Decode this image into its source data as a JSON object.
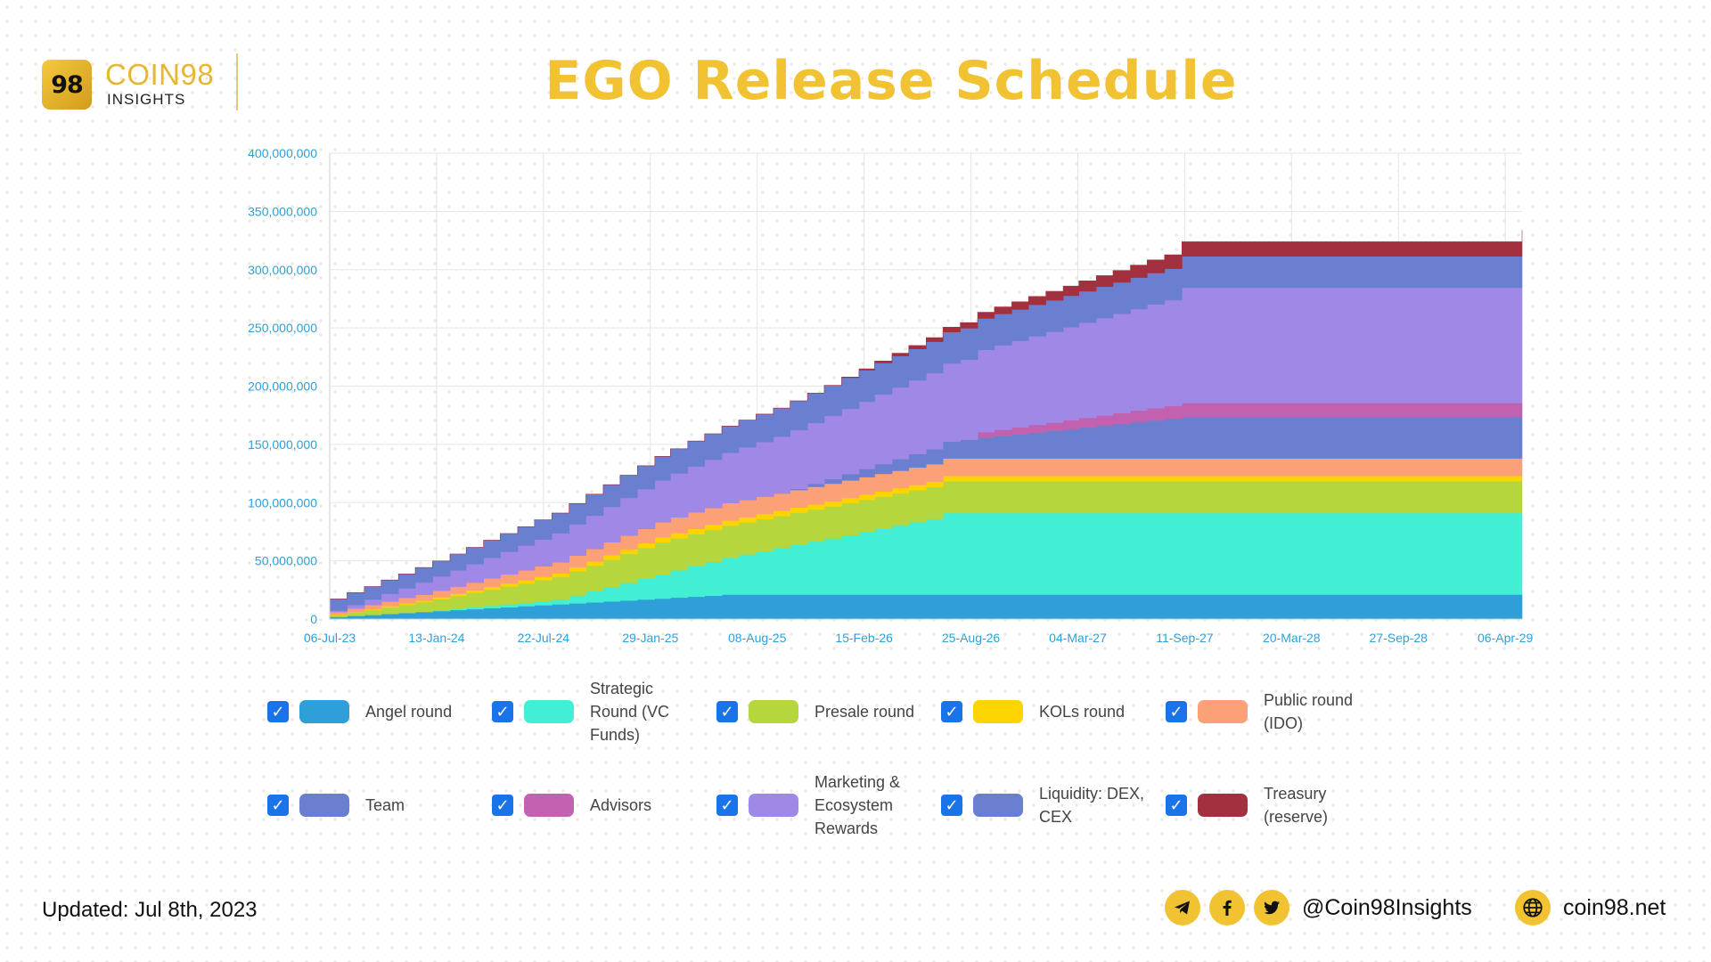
{
  "brand": {
    "logo_mark": "98",
    "name": "COIN98",
    "sub": "INSIGHTS",
    "accent": "#f1c232"
  },
  "title": "EGO Release Schedule",
  "chart_data": {
    "type": "area",
    "stacked": true,
    "x_dates": [
      "2023-07-06",
      "2023-08-06",
      "2023-09-06",
      "2023-10-06",
      "2023-11-06",
      "2023-12-06",
      "2024-01-06",
      "2024-02-06",
      "2024-03-06",
      "2024-04-06",
      "2024-05-06",
      "2024-06-06",
      "2024-07-06",
      "2024-08-06",
      "2024-09-06",
      "2024-10-06",
      "2024-11-06",
      "2024-12-06",
      "2025-01-06",
      "2025-02-06",
      "2025-03-06",
      "2025-04-06",
      "2025-05-06",
      "2025-06-06",
      "2025-07-06",
      "2025-08-06",
      "2025-09-06",
      "2025-10-06",
      "2025-11-06",
      "2025-12-06",
      "2026-01-06",
      "2026-02-06",
      "2026-03-06",
      "2026-04-06",
      "2026-05-06",
      "2026-06-06",
      "2026-07-06",
      "2026-08-06",
      "2026-09-06",
      "2026-10-06",
      "2026-11-06",
      "2026-12-06",
      "2027-01-06",
      "2027-02-06",
      "2027-03-06",
      "2027-04-06",
      "2027-05-06",
      "2027-06-06",
      "2027-07-06",
      "2027-08-06",
      "2027-09-06",
      "2029-05-06"
    ],
    "series": [
      {
        "name": "Angel round",
        "color": "#2e9fd8",
        "values": [
          2000000,
          2800000,
          3600000,
          4500000,
          5300000,
          6100000,
          6900000,
          7800000,
          8600000,
          9400000,
          10200000,
          11100000,
          11900000,
          12700000,
          13500000,
          14400000,
          15200000,
          16000000,
          16800000,
          17700000,
          18500000,
          19300000,
          20100000,
          21000000,
          21000000,
          21000000,
          21000000,
          21000000,
          21000000,
          21000000,
          21000000,
          21000000,
          21000000,
          21000000,
          21000000,
          21000000,
          21000000,
          21000000,
          21000000,
          21000000,
          21000000,
          21000000,
          21000000,
          21000000,
          21000000,
          21000000,
          21000000,
          21000000,
          21000000,
          21000000,
          21000000,
          21000000
        ]
      },
      {
        "name": "Strategic Round (VC Funds)",
        "color": "#42efd4",
        "values": [
          0,
          0,
          0,
          0,
          0,
          0,
          500000,
          1000000,
          1500000,
          2000000,
          2500000,
          3000000,
          3500000,
          4000000,
          6800000,
          9500000,
          12300000,
          15100000,
          17900000,
          20600000,
          23400000,
          26200000,
          28900000,
          31700000,
          34500000,
          37300000,
          40000000,
          42800000,
          45600000,
          48300000,
          51100000,
          53900000,
          56700000,
          59400000,
          62200000,
          65000000,
          70000000,
          70000000,
          70000000,
          70000000,
          70000000,
          70000000,
          70000000,
          70000000,
          70000000,
          70000000,
          70000000,
          70000000,
          70000000,
          70000000,
          70000000,
          70000000
        ]
      },
      {
        "name": "Presale round",
        "color": "#b5d63c",
        "values": [
          1500000,
          2900000,
          4200000,
          5600000,
          7000000,
          8400000,
          9800000,
          11100000,
          12500000,
          13900000,
          15300000,
          16600000,
          18000000,
          19400000,
          20800000,
          22100000,
          23500000,
          24900000,
          26300000,
          27500000,
          27500000,
          27500000,
          27500000,
          27500000,
          27500000,
          27500000,
          27500000,
          27500000,
          27500000,
          27500000,
          27500000,
          27500000,
          27500000,
          27500000,
          27500000,
          27500000,
          27500000,
          27500000,
          27500000,
          27500000,
          27500000,
          27500000,
          27500000,
          27500000,
          27500000,
          27500000,
          27500000,
          27500000,
          27500000,
          27500000,
          27500000,
          27500000
        ]
      },
      {
        "name": "KOLs round",
        "color": "#fdd400",
        "values": [
          300000,
          500000,
          700000,
          1000000,
          1200000,
          1400000,
          1600000,
          1800000,
          2000000,
          2300000,
          2500000,
          2700000,
          2900000,
          3100000,
          3400000,
          3600000,
          3800000,
          4000000,
          4200000,
          4500000,
          4500000,
          4500000,
          4500000,
          4500000,
          4500000,
          4500000,
          4500000,
          4500000,
          4500000,
          4500000,
          4500000,
          4500000,
          4500000,
          4500000,
          4500000,
          4500000,
          4500000,
          4500000,
          4500000,
          4500000,
          4500000,
          4500000,
          4500000,
          4500000,
          4500000,
          4500000,
          4500000,
          4500000,
          4500000,
          4500000,
          4500000,
          4500000
        ]
      },
      {
        "name": "Public round (IDO)",
        "color": "#fca078",
        "values": [
          2500000,
          3100000,
          3600000,
          4200000,
          4700000,
          5300000,
          5800000,
          6400000,
          6900000,
          7500000,
          8000000,
          8600000,
          9100000,
          9700000,
          10200000,
          10800000,
          11300000,
          11900000,
          12400000,
          13000000,
          13500000,
          14100000,
          14600000,
          15000000,
          15000000,
          15000000,
          15000000,
          15000000,
          15000000,
          15000000,
          15000000,
          15000000,
          15000000,
          15000000,
          15000000,
          15000000,
          15000000,
          15000000,
          15000000,
          15000000,
          15000000,
          15000000,
          15000000,
          15000000,
          15000000,
          15000000,
          15000000,
          15000000,
          15000000,
          15000000,
          15000000,
          15000000
        ]
      },
      {
        "name": "Team",
        "color": "#6b7fd1",
        "values": [
          0,
          0,
          0,
          0,
          0,
          0,
          0,
          0,
          0,
          0,
          0,
          0,
          0,
          0,
          0,
          0,
          0,
          0,
          0,
          0,
          0,
          0,
          0,
          0,
          0,
          0,
          0,
          1000000,
          2500000,
          4000000,
          5500000,
          7000000,
          8500000,
          10000000,
          11500000,
          13000000,
          14500000,
          16000000,
          17500000,
          19000000,
          20500000,
          22000000,
          23500000,
          25000000,
          26500000,
          28000000,
          29500000,
          31000000,
          32500000,
          34000000,
          35500000,
          35500000
        ]
      },
      {
        "name": "Advisors",
        "color": "#c161b0",
        "values": [
          0,
          0,
          0,
          0,
          0,
          0,
          0,
          0,
          0,
          0,
          0,
          0,
          0,
          0,
          0,
          0,
          0,
          0,
          0,
          0,
          0,
          0,
          0,
          0,
          0,
          0,
          0,
          0,
          0,
          0,
          0,
          0,
          0,
          0,
          0,
          0,
          0,
          0,
          5000000,
          5600000,
          6100000,
          6700000,
          7200000,
          7800000,
          8300000,
          8900000,
          9400000,
          10000000,
          10600000,
          11100000,
          12000000,
          12000000
        ]
      },
      {
        "name": "Marketing & Ecosystem Rewards",
        "color": "#9f88e6",
        "values": [
          1000000,
          2800000,
          4700000,
          6500000,
          8300000,
          10200000,
          12000000,
          13800000,
          15700000,
          17500000,
          19300000,
          21200000,
          23000000,
          24800000,
          26700000,
          28500000,
          30300000,
          32200000,
          34000000,
          35800000,
          37700000,
          39500000,
          41300000,
          43200000,
          45000000,
          46800000,
          48700000,
          50500000,
          52300000,
          54200000,
          56000000,
          57800000,
          59700000,
          61500000,
          63300000,
          65200000,
          67000000,
          68800000,
          70700000,
          72500000,
          74300000,
          76200000,
          78000000,
          79800000,
          81700000,
          83500000,
          85300000,
          87200000,
          89000000,
          90800000,
          99000000,
          99000000
        ]
      },
      {
        "name": "Liquidity: DEX, CEX",
        "color": "#6b7fd1",
        "values": [
          10000000,
          10600000,
          11100000,
          11700000,
          12200000,
          12800000,
          13300000,
          13900000,
          14400000,
          15000000,
          15600000,
          16100000,
          16700000,
          17200000,
          17800000,
          18300000,
          18900000,
          19400000,
          20000000,
          20600000,
          21100000,
          21700000,
          22200000,
          22800000,
          23300000,
          23900000,
          24400000,
          25000000,
          25600000,
          26100000,
          26700000,
          27000000,
          27000000,
          27000000,
          27000000,
          27000000,
          27000000,
          27000000,
          27000000,
          27000000,
          27000000,
          27000000,
          27000000,
          27000000,
          27000000,
          27000000,
          27000000,
          27000000,
          27000000,
          27000000,
          27000000,
          27000000
        ]
      },
      {
        "name": "Treasury (reserve)",
        "color": "#a3303e",
        "values": [
          0,
          0,
          0,
          0,
          0,
          0,
          0,
          0,
          0,
          0,
          0,
          0,
          0,
          0,
          0,
          0,
          0,
          0,
          0,
          0,
          0,
          0,
          0,
          0,
          0,
          0,
          0,
          0,
          0,
          0,
          500000,
          1100000,
          1700000,
          2300000,
          2900000,
          3500000,
          4100000,
          4700000,
          5300000,
          5900000,
          6500000,
          7100000,
          7700000,
          8300000,
          8900000,
          9500000,
          10100000,
          10700000,
          11300000,
          11900000,
          12500000,
          22500000
        ]
      }
    ],
    "yticks": [
      "0",
      "50,000,000",
      "100,000,000",
      "150,000,000",
      "200,000,000",
      "250,000,000",
      "300,000,000",
      "350,000,000",
      "400,000,000"
    ],
    "ylim": [
      0,
      400000000
    ],
    "xlim": [
      "2023-07-06",
      "2029-05-06"
    ],
    "xticks": [
      {
        "label": "06-Jul-23",
        "date": "2023-07-06"
      },
      {
        "label": "13-Jan-24",
        "date": "2024-01-13"
      },
      {
        "label": "22-Jul-24",
        "date": "2024-07-22"
      },
      {
        "label": "29-Jan-25",
        "date": "2025-01-29"
      },
      {
        "label": "08-Aug-25",
        "date": "2025-08-08"
      },
      {
        "label": "15-Feb-26",
        "date": "2026-02-15"
      },
      {
        "label": "25-Aug-26",
        "date": "2026-08-25"
      },
      {
        "label": "04-Mar-27",
        "date": "2027-03-04"
      },
      {
        "label": "11-Sep-27",
        "date": "2027-09-11"
      },
      {
        "label": "20-Mar-28",
        "date": "2028-03-20"
      },
      {
        "label": "27-Sep-28",
        "date": "2028-09-27"
      },
      {
        "label": "06-Apr-29",
        "date": "2029-04-06"
      }
    ],
    "grid": true,
    "legend": "bottom",
    "step": true
  },
  "legend_items": [
    {
      "label": "Angel round",
      "color": "#2e9fd8"
    },
    {
      "label": "Strategic Round (VC Funds)",
      "color": "#42efd4"
    },
    {
      "label": "Presale round",
      "color": "#b5d63c"
    },
    {
      "label": "KOLs round",
      "color": "#fdd400"
    },
    {
      "label": "Public round (IDO)",
      "color": "#fca078"
    },
    {
      "label": "Team",
      "color": "#6b7fd1"
    },
    {
      "label": "Advisors",
      "color": "#c161b0"
    },
    {
      "label": "Marketing & Ecosystem Rewards",
      "color": "#9f88e6"
    },
    {
      "label": "Liquidity: DEX, CEX",
      "color": "#6b7fd1"
    },
    {
      "label": "Treasury (reserve)",
      "color": "#a3303e"
    }
  ],
  "checkbox_state": "checked",
  "footer": {
    "updated": "Updated: Jul 8th, 2023",
    "handle": "@Coin98Insights",
    "site": "coin98.net",
    "icons": [
      "telegram-icon",
      "facebook-icon",
      "twitter-icon",
      "globe-icon"
    ]
  }
}
